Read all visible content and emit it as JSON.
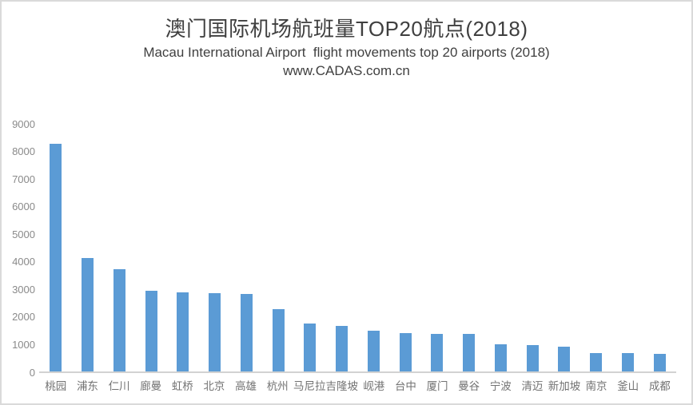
{
  "header": {
    "title": "澳门国际机场航班量TOP20航点(2018)",
    "subtitle": "Macau International Airport  flight movements top 20 airports (2018)",
    "watermark": "www.CADAS.com.cn"
  },
  "chart_data": {
    "type": "bar",
    "title": "澳门国际机场航班量TOP20航点(2018)",
    "subtitle": "Macau International Airport  flight movements top 20 airports (2018)",
    "watermark": "www.CADAS.com.cn",
    "categories": [
      "桃园",
      "浦东",
      "仁川",
      "廊曼",
      "虹桥",
      "北京",
      "高雄",
      "杭州",
      "马尼拉",
      "吉隆坡",
      "岘港",
      "台中",
      "厦门",
      "曼谷",
      "宁波",
      "清迈",
      "新加坡",
      "南京",
      "釜山",
      "成都"
    ],
    "values": [
      8280,
      4150,
      3730,
      2950,
      2890,
      2860,
      2830,
      2280,
      1760,
      1680,
      1510,
      1420,
      1400,
      1390,
      1010,
      990,
      930,
      710,
      700,
      670
    ],
    "xlabel": "",
    "ylabel": "",
    "ylim": [
      0,
      9000
    ],
    "yticks": [
      0,
      1000,
      2000,
      3000,
      4000,
      5000,
      6000,
      7000,
      8000,
      9000
    ],
    "grid": false,
    "legend": false,
    "bar_color": "#5b9bd5",
    "axis_color": "#d2d2d2",
    "tick_label_color": "#8a8a8a"
  }
}
